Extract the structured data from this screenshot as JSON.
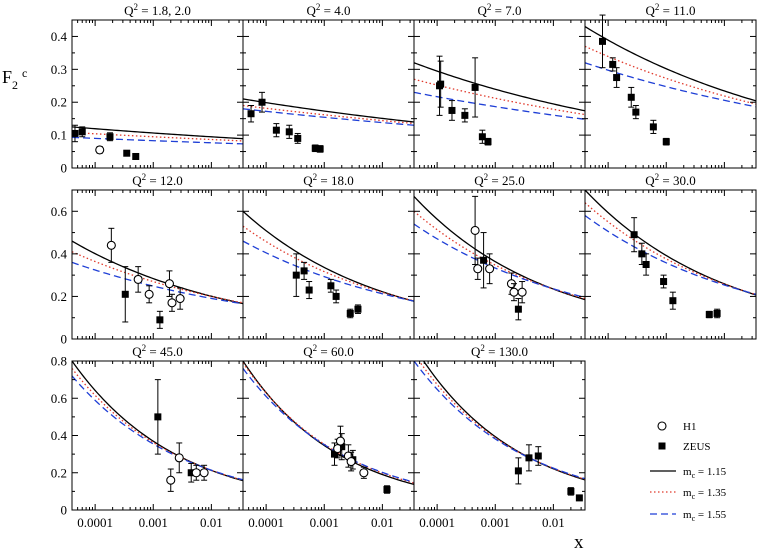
{
  "chart_data": {
    "type": "scatter",
    "ylabel": "F",
    "ylabel_sub": "2",
    "ylabel_sup": "c",
    "xlabel": "x",
    "x_scale": "log",
    "xlim": [
      4e-05,
      0.035
    ],
    "x_ticks": [
      0.0001,
      0.001,
      0.01
    ],
    "x_tick_labels": [
      "0.0001",
      "0.001",
      "0.01"
    ],
    "legend": {
      "position": "bottom-right",
      "entries": [
        {
          "key": "h1",
          "label": "H1",
          "kind": "open-circle"
        },
        {
          "key": "zeus",
          "label": "ZEUS",
          "kind": "filled-square"
        },
        {
          "key": "mc115",
          "label": "m",
          "sub": "c",
          "value": " = 1.15",
          "kind": "line",
          "color": "#000000",
          "dash": "solid"
        },
        {
          "key": "mc135",
          "label": "m",
          "sub": "c",
          "value": " = 1.35",
          "kind": "line",
          "color": "#e0392b",
          "dash": "dotted"
        },
        {
          "key": "mc155",
          "label": "m",
          "sub": "c",
          "value": " = 1.55",
          "kind": "line",
          "color": "#1f3fd6",
          "dash": "dashed"
        }
      ]
    },
    "panels": [
      {
        "q2": "1.8, 2.0",
        "ylim": [
          0,
          0.45
        ],
        "yticks": [
          0,
          0.1,
          0.2,
          0.3,
          0.4
        ],
        "ytick_labels": [
          "0",
          "0.1",
          "0.2",
          "0.3",
          "0.4"
        ],
        "curves": [
          {
            "key": "mc115",
            "a": 0.125,
            "b": 0.05
          },
          {
            "key": "mc135",
            "a": 0.108,
            "b": 0.04
          },
          {
            "key": "mc155",
            "a": 0.093,
            "b": 0.035
          }
        ],
        "h1": [
          {
            "x": 0.00012,
            "y": 0.055,
            "err": 0.01
          }
        ],
        "zeus": [
          {
            "x": 4.5e-05,
            "y": 0.105,
            "err": 0.025
          },
          {
            "x": 6e-05,
            "y": 0.11,
            "err": 0.015
          },
          {
            "x": 0.00018,
            "y": 0.095,
            "err": 0.012
          },
          {
            "x": 0.00035,
            "y": 0.045,
            "err": 0.008
          },
          {
            "x": 0.0005,
            "y": 0.035,
            "err": 0.006
          }
        ]
      },
      {
        "q2": "4.0",
        "ylim": [
          0,
          0.45
        ],
        "yticks": [
          0,
          0.1,
          0.2,
          0.3,
          0.4
        ],
        "ytick_labels": [],
        "curves": [
          {
            "key": "mc115",
            "a": 0.21,
            "b": 0.06
          },
          {
            "key": "mc135",
            "a": 0.19,
            "b": 0.05
          },
          {
            "key": "mc155",
            "a": 0.18,
            "b": 0.048
          }
        ],
        "h1": [],
        "zeus": [
          {
            "x": 5.5e-05,
            "y": 0.165,
            "err": 0.025
          },
          {
            "x": 8.5e-05,
            "y": 0.2,
            "err": 0.03
          },
          {
            "x": 0.00015,
            "y": 0.115,
            "err": 0.02
          },
          {
            "x": 0.00025,
            "y": 0.11,
            "err": 0.02
          },
          {
            "x": 0.00035,
            "y": 0.09,
            "err": 0.015
          },
          {
            "x": 0.0007,
            "y": 0.06,
            "err": 0.01
          },
          {
            "x": 0.00085,
            "y": 0.058,
            "err": 0.01
          }
        ]
      },
      {
        "q2": "7.0",
        "ylim": [
          0,
          0.45
        ],
        "yticks": [
          0,
          0.1,
          0.2,
          0.3,
          0.4
        ],
        "ytick_labels": [],
        "curves": [
          {
            "key": "mc115",
            "a": 0.32,
            "b": 0.09
          },
          {
            "key": "mc135",
            "a": 0.27,
            "b": 0.075
          },
          {
            "key": "mc155",
            "a": 0.23,
            "b": 0.065
          }
        ],
        "h1": [],
        "zeus": [
          {
            "x": 0.00011,
            "y": 0.25,
            "err": 0.09
          },
          {
            "x": 0.000115,
            "y": 0.255,
            "err": 0.07
          },
          {
            "x": 0.00018,
            "y": 0.175,
            "err": 0.03
          },
          {
            "x": 0.0003,
            "y": 0.16,
            "err": 0.02
          },
          {
            "x": 0.00045,
            "y": 0.245,
            "err": 0.09
          },
          {
            "x": 0.0006,
            "y": 0.095,
            "err": 0.02
          },
          {
            "x": 0.00075,
            "y": 0.08,
            "err": 0.01
          }
        ]
      },
      {
        "q2": "11.0",
        "ylim": [
          0,
          0.45
        ],
        "yticks": [
          0,
          0.1,
          0.2,
          0.3,
          0.4
        ],
        "ytick_labels": [],
        "curves": [
          {
            "key": "mc115",
            "a": 0.43,
            "b": 0.11
          },
          {
            "key": "mc135",
            "a": 0.37,
            "b": 0.095
          },
          {
            "key": "mc155",
            "a": 0.32,
            "b": 0.08
          }
        ],
        "h1": [],
        "zeus": [
          {
            "x": 8e-05,
            "y": 0.385,
            "err": 0.08
          },
          {
            "x": 0.00012,
            "y": 0.315,
            "err": 0.02
          },
          {
            "x": 0.00014,
            "y": 0.275,
            "err": 0.03
          },
          {
            "x": 0.00025,
            "y": 0.215,
            "err": 0.03
          },
          {
            "x": 0.0003,
            "y": 0.17,
            "err": 0.02
          },
          {
            "x": 0.0006,
            "y": 0.125,
            "err": 0.02
          },
          {
            "x": 0.001,
            "y": 0.08,
            "err": 0.01
          }
        ]
      },
      {
        "q2": "12.0",
        "ylim": [
          0,
          0.7
        ],
        "yticks": [
          0,
          0.2,
          0.4,
          0.6
        ],
        "ytick_labels": [
          "0",
          "0.2",
          "0.4",
          "0.6"
        ],
        "curves": [
          {
            "key": "mc115",
            "a": 0.46,
            "b": 0.15
          },
          {
            "key": "mc135",
            "a": 0.41,
            "b": 0.13
          },
          {
            "key": "mc155",
            "a": 0.36,
            "b": 0.115
          }
        ],
        "h1": [
          {
            "x": 0.00019,
            "y": 0.44,
            "err": 0.08
          },
          {
            "x": 0.00055,
            "y": 0.28,
            "err": 0.06
          },
          {
            "x": 0.00085,
            "y": 0.21,
            "err": 0.04
          },
          {
            "x": 0.0019,
            "y": 0.26,
            "err": 0.06
          },
          {
            "x": 0.0021,
            "y": 0.17,
            "err": 0.04
          },
          {
            "x": 0.0029,
            "y": 0.19,
            "err": 0.05
          }
        ],
        "zeus": [
          {
            "x": 0.00033,
            "y": 0.21,
            "err": 0.13
          },
          {
            "x": 0.0013,
            "y": 0.09,
            "err": 0.04
          }
        ]
      },
      {
        "q2": "18.0",
        "ylim": [
          0,
          0.7
        ],
        "yticks": [
          0,
          0.2,
          0.4,
          0.6
        ],
        "ytick_labels": [],
        "curves": [
          {
            "key": "mc115",
            "a": 0.6,
            "b": 0.18
          },
          {
            "key": "mc135",
            "a": 0.53,
            "b": 0.16
          },
          {
            "key": "mc155",
            "a": 0.46,
            "b": 0.14
          }
        ],
        "h1": [],
        "zeus": [
          {
            "x": 0.00033,
            "y": 0.3,
            "err": 0.1
          },
          {
            "x": 0.00045,
            "y": 0.32,
            "err": 0.04
          },
          {
            "x": 0.00055,
            "y": 0.23,
            "err": 0.04
          },
          {
            "x": 0.0013,
            "y": 0.25,
            "err": 0.03
          },
          {
            "x": 0.0016,
            "y": 0.2,
            "err": 0.03
          },
          {
            "x": 0.0028,
            "y": 0.12,
            "err": 0.02
          },
          {
            "x": 0.0038,
            "y": 0.14,
            "err": 0.02
          }
        ]
      },
      {
        "q2": "25.0",
        "ylim": [
          0,
          0.7
        ],
        "yticks": [
          0,
          0.2,
          0.4,
          0.6
        ],
        "ytick_labels": [],
        "curves": [
          {
            "key": "mc115",
            "a": 0.67,
            "b": 0.19
          },
          {
            "key": "mc135",
            "a": 0.6,
            "b": 0.17
          },
          {
            "key": "mc155",
            "a": 0.54,
            "b": 0.15
          }
        ],
        "h1": [
          {
            "x": 0.00045,
            "y": 0.51,
            "err": 0.16
          },
          {
            "x": 0.0005,
            "y": 0.33,
            "err": 0.05
          },
          {
            "x": 0.0008,
            "y": 0.33,
            "err": 0.07
          },
          {
            "x": 0.0019,
            "y": 0.26,
            "err": 0.05
          },
          {
            "x": 0.0021,
            "y": 0.22,
            "err": 0.04
          },
          {
            "x": 0.0029,
            "y": 0.22,
            "err": 0.05
          }
        ],
        "zeus": [
          {
            "x": 0.00063,
            "y": 0.37,
            "err": 0.13
          },
          {
            "x": 0.0025,
            "y": 0.14,
            "err": 0.05
          }
        ]
      },
      {
        "q2": "30.0",
        "ylim": [
          0,
          0.7
        ],
        "yticks": [
          0,
          0.2,
          0.4,
          0.6
        ],
        "ytick_labels": [],
        "curves": [
          {
            "key": "mc115",
            "a": 0.7,
            "b": 0.18
          },
          {
            "key": "mc135",
            "a": 0.64,
            "b": 0.165
          },
          {
            "key": "mc155",
            "a": 0.58,
            "b": 0.15
          }
        ],
        "h1": [],
        "zeus": [
          {
            "x": 0.00028,
            "y": 0.49,
            "err": 0.08
          },
          {
            "x": 0.00038,
            "y": 0.4,
            "err": 0.05
          },
          {
            "x": 0.00045,
            "y": 0.35,
            "err": 0.05
          },
          {
            "x": 0.0009,
            "y": 0.27,
            "err": 0.03
          },
          {
            "x": 0.0013,
            "y": 0.18,
            "err": 0.04
          },
          {
            "x": 0.0055,
            "y": 0.115,
            "err": 0.015
          },
          {
            "x": 0.0075,
            "y": 0.12,
            "err": 0.02
          }
        ]
      },
      {
        "q2": "45.0",
        "ylim": [
          0,
          0.8
        ],
        "yticks": [
          0,
          0.2,
          0.4,
          0.6,
          0.8
        ],
        "ytick_labels": [
          "0",
          "0.2",
          "0.4",
          "0.6",
          "0.8"
        ],
        "curves": [
          {
            "key": "mc115",
            "a": 0.8,
            "b": 0.24
          },
          {
            "key": "mc135",
            "a": 0.76,
            "b": 0.23
          },
          {
            "key": "mc155",
            "a": 0.72,
            "b": 0.22
          }
        ],
        "h1": [
          {
            "x": 0.002,
            "y": 0.16,
            "err": 0.06
          },
          {
            "x": 0.0028,
            "y": 0.28,
            "err": 0.08
          },
          {
            "x": 0.0055,
            "y": 0.2,
            "err": 0.04
          },
          {
            "x": 0.0075,
            "y": 0.2,
            "err": 0.04
          }
        ],
        "zeus": [
          {
            "x": 0.0012,
            "y": 0.5,
            "err": 0.2
          },
          {
            "x": 0.0045,
            "y": 0.2,
            "err": 0.05
          }
        ]
      },
      {
        "q2": "60.0",
        "ylim": [
          0,
          0.8
        ],
        "yticks": [
          0,
          0.2,
          0.4,
          0.6,
          0.8
        ],
        "ytick_labels": [],
        "curves": [
          {
            "key": "mc115",
            "a": 0.8,
            "b": 0.26
          },
          {
            "key": "mc135",
            "a": 0.79,
            "b": 0.25
          },
          {
            "key": "mc155",
            "a": 0.76,
            "b": 0.24
          }
        ],
        "h1": [
          {
            "x": 0.0017,
            "y": 0.33,
            "err": 0.05
          },
          {
            "x": 0.0019,
            "y": 0.37,
            "err": 0.08
          },
          {
            "x": 0.0026,
            "y": 0.29,
            "err": 0.06
          },
          {
            "x": 0.0029,
            "y": 0.26,
            "err": 0.05
          },
          {
            "x": 0.0048,
            "y": 0.2,
            "err": 0.03
          }
        ],
        "zeus": [
          {
            "x": 0.0015,
            "y": 0.3,
            "err": 0.06
          },
          {
            "x": 0.002,
            "y": 0.34,
            "err": 0.07
          },
          {
            "x": 0.0031,
            "y": 0.27,
            "err": 0.05
          },
          {
            "x": 0.012,
            "y": 0.11,
            "err": 0.02
          }
        ]
      },
      {
        "q2": "130.0",
        "ylim": [
          0,
          0.8
        ],
        "yticks": [
          0,
          0.2,
          0.4,
          0.6,
          0.8
        ],
        "ytick_labels": [],
        "curves": [
          {
            "key": "mc115",
            "a": 0.88,
            "b": 0.25
          },
          {
            "key": "mc135",
            "a": 0.84,
            "b": 0.24
          },
          {
            "key": "mc155",
            "a": 0.8,
            "b": 0.23
          }
        ],
        "h1": [],
        "zeus": [
          {
            "x": 0.0025,
            "y": 0.21,
            "err": 0.07
          },
          {
            "x": 0.0038,
            "y": 0.28,
            "err": 0.07
          },
          {
            "x": 0.0055,
            "y": 0.29,
            "err": 0.05
          },
          {
            "x": 0.02,
            "y": 0.1,
            "err": 0.02
          },
          {
            "x": 0.028,
            "y": 0.065,
            "err": 0.01
          }
        ]
      }
    ]
  }
}
